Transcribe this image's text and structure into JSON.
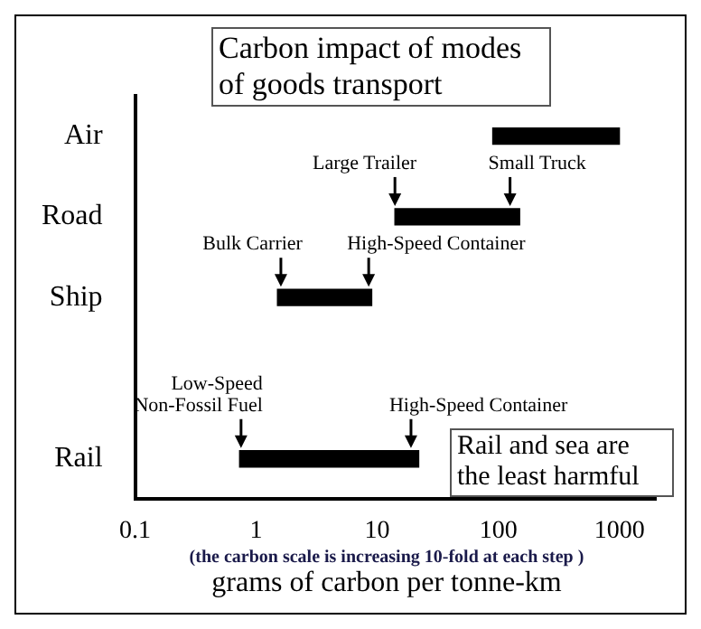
{
  "chart_data": {
    "type": "bar",
    "orientation": "horizontal",
    "title": "Carbon impact of modes of goods transport",
    "xlabel": "grams of carbon per tonne-km",
    "categories": [
      "Air",
      "Road",
      "Ship",
      null,
      "Rail"
    ],
    "base": [
      90,
      14,
      1.5,
      null,
      0.73
    ],
    "values": [
      910,
      136,
      7.5,
      null,
      21.27
    ],
    "color": "#000000",
    "log": "x",
    "xlim": [
      0.1,
      2000
    ],
    "xticks": [
      0.1,
      1,
      10,
      100,
      1000
    ],
    "annotations": [
      {
        "text": "Large Trailer",
        "x": 14,
        "y": "Road"
      },
      {
        "text": "Small Truck",
        "x": 125,
        "y": "Road"
      },
      {
        "text": "Bulk Carrier",
        "x": 1.6,
        "y": "Ship"
      },
      {
        "text": "High-Speed Container",
        "x": 8.5,
        "y": "Ship"
      },
      {
        "text": "Low-Speed\nNon-Fossil Fuel",
        "x": 0.75,
        "y": "Rail"
      },
      {
        "text": "High-Speed Container",
        "x": 19,
        "y": "Rail"
      },
      "Rail and sea are the least harmful",
      "(the carbon scale is increasing 10-fold at each step )"
    ]
  }
}
